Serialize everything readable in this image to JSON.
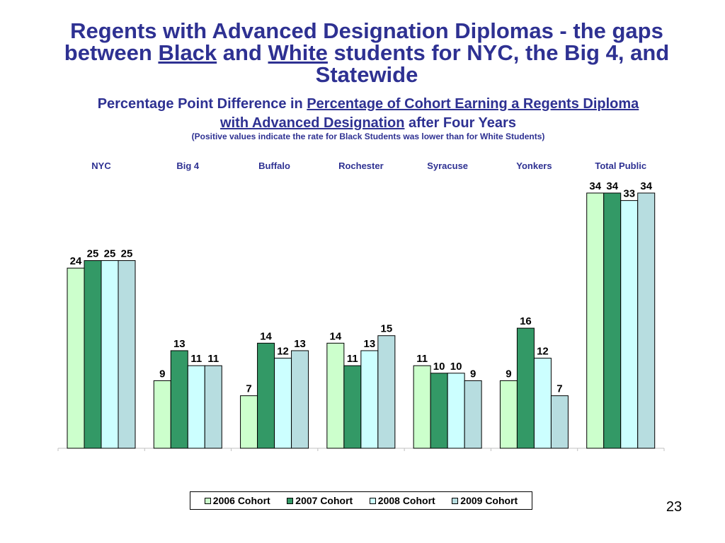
{
  "slide": {
    "title_line1": "Regents with Advanced Designation Diplomas - the gaps",
    "title_between": "between",
    "title_black": "Black",
    "title_and": "and",
    "title_white": "White",
    "title_rest": "students for NYC, the Big 4, and",
    "title_line3": "Statewide",
    "subtitle_lead": "Percentage Point Difference in",
    "subtitle_link1": "Percentage of Cohort Earning a Regents Diploma",
    "subtitle_link2": "with Advanced Designation",
    "subtitle_tail": "after Four Years",
    "note": "(Positive values indicate the rate for Black Students was lower than for White Students)",
    "page_number": "23"
  },
  "chart_data": {
    "type": "bar",
    "title": "Percentage Point Difference in Percentage of Cohort Earning a Regents Diploma with Advanced Designation after Four Years",
    "categories": [
      "NYC",
      "Big 4",
      "Buffalo",
      "Rochester",
      "Syracuse",
      "Yonkers",
      "Total Public"
    ],
    "series": [
      {
        "name": "2006 Cohort",
        "color": "#ccffcc",
        "values": [
          24,
          9,
          7,
          14,
          11,
          9,
          34
        ]
      },
      {
        "name": "2007 Cohort",
        "color": "#339966",
        "values": [
          25,
          13,
          14,
          11,
          10,
          16,
          34
        ]
      },
      {
        "name": "2008 Cohort",
        "color": "#ccffff",
        "values": [
          25,
          11,
          12,
          13,
          10,
          12,
          33
        ]
      },
      {
        "name": "2009 Cohort",
        "color": "#b7dde0",
        "values": [
          25,
          11,
          13,
          15,
          9,
          7,
          34
        ]
      }
    ],
    "ylim": [
      0,
      34
    ],
    "xlabel": "",
    "ylabel": "",
    "grid": false,
    "legend_position": "bottom"
  }
}
